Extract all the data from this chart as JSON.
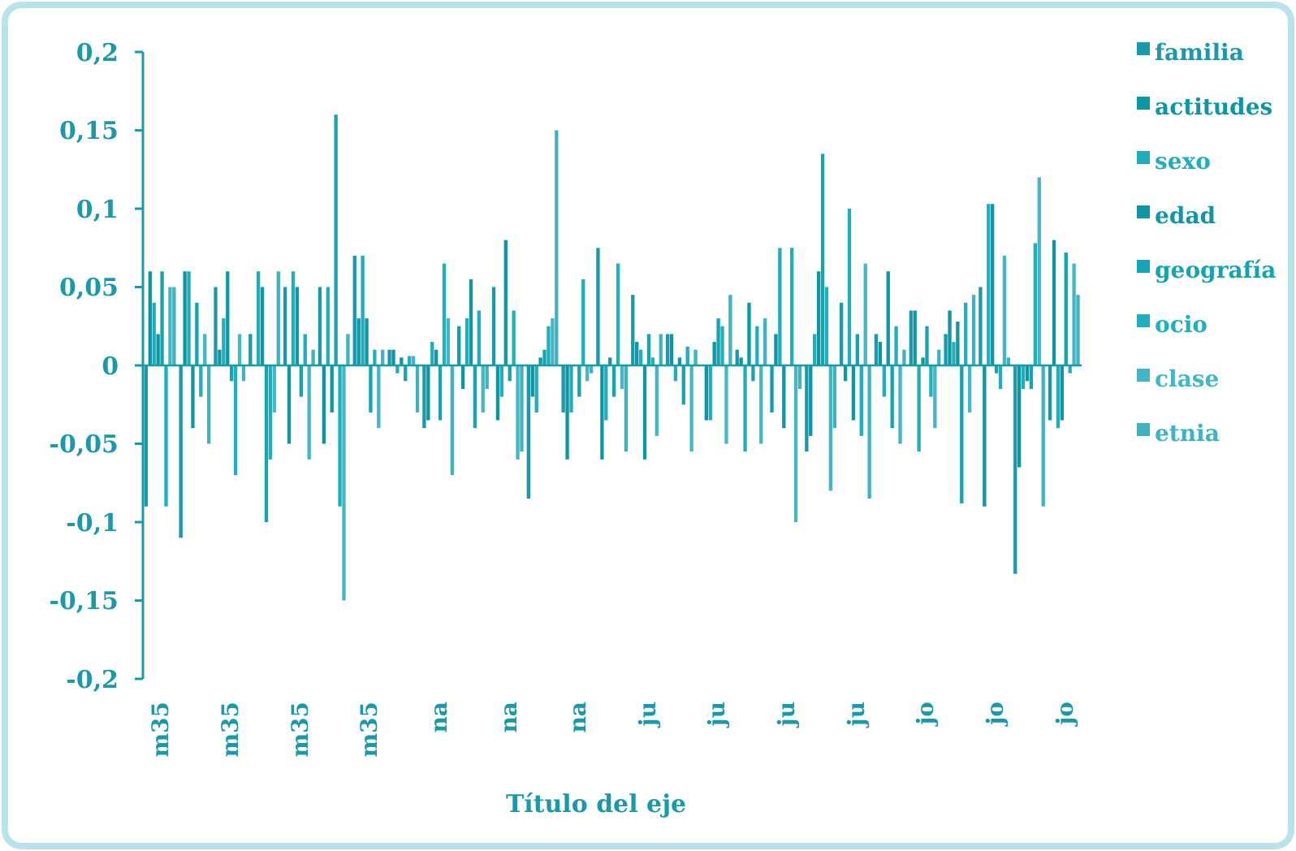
{
  "chart_data": {
    "type": "bar",
    "xlabel": "Título del eje",
    "categories": [
      "m35",
      null,
      "m35",
      null,
      "m35",
      null,
      "m35",
      null,
      "na",
      null,
      "na",
      null,
      "na",
      null,
      "ju",
      null,
      "ju",
      null,
      "ju",
      null,
      "ju",
      null,
      "jo",
      null,
      "jo",
      null,
      "jo"
    ],
    "series": [
      {
        "name": "familia",
        "color": "#1a9aa8",
        "values": [
          -0.09,
          -0.11,
          0.05,
          0.02,
          0.05,
          0.05,
          0.07,
          0.01,
          -0.04,
          0.025,
          0.05,
          -0.085,
          -0.03,
          0.075,
          0.045,
          0.02,
          0,
          0.01,
          -0.03,
          -0.055,
          0.04,
          0.02,
          0.035,
          0.02,
          0.05,
          -0.133,
          -0.035
        ]
      },
      {
        "name": "actitudes",
        "color": "#0e96a4",
        "values": [
          0.06,
          0.06,
          0.01,
          0,
          -0.05,
          -0.05,
          0.03,
          0.01,
          -0.035,
          -0.015,
          -0.035,
          -0.02,
          -0.06,
          -0.06,
          0.015,
          0.02,
          -0.035,
          0.005,
          0.02,
          -0.045,
          -0.01,
          0.015,
          0.035,
          0.035,
          -0.09,
          -0.065,
          0.08
        ]
      },
      {
        "name": "sexo",
        "color": "#22adbb",
        "values": [
          0.04,
          0.06,
          0.03,
          0.06,
          0.06,
          0.05,
          0.07,
          -0.005,
          0.015,
          0.03,
          -0.02,
          -0.03,
          -0.03,
          -0.035,
          0.01,
          -0.01,
          -0.035,
          -0.055,
          0.075,
          0.02,
          0.1,
          -0.02,
          -0.055,
          0.015,
          0.103,
          -0.015,
          -0.04
        ]
      },
      {
        "name": "edad",
        "color": "#0f97a5",
        "values": [
          0.02,
          -0.04,
          0.06,
          0.05,
          0.05,
          -0.03,
          0.03,
          0.005,
          0.01,
          0.055,
          0.08,
          0.005,
          0,
          0.005,
          -0.06,
          0.005,
          0.015,
          0.04,
          -0.04,
          0.06,
          -0.035,
          0.06,
          0.005,
          0.028,
          0.103,
          -0.01,
          -0.035
        ]
      },
      {
        "name": "geografía",
        "color": "#15a4b0",
        "values": [
          0.06,
          0.04,
          -0.01,
          -0.1,
          -0.02,
          0.16,
          -0.03,
          -0.01,
          -0.035,
          -0.04,
          -0.01,
          0.01,
          -0.02,
          -0.02,
          0.02,
          -0.025,
          0.03,
          -0.01,
          0,
          0.135,
          0.02,
          -0.04,
          0.025,
          -0.088,
          -0.005,
          -0.015,
          0.072
        ]
      },
      {
        "name": "ocio",
        "color": "#1eb0bd",
        "values": [
          -0.09,
          -0.02,
          -0.07,
          -0.06,
          0.02,
          -0.09,
          0.01,
          0.006,
          0.065,
          0.035,
          0.035,
          0.025,
          0.055,
          0.065,
          0.005,
          0.012,
          0.025,
          0.025,
          0.075,
          0.05,
          -0.045,
          0.025,
          -0.02,
          0.04,
          -0.015,
          0.078,
          -0.005
        ]
      },
      {
        "name": "clase",
        "color": "#44b7c4",
        "values": [
          0.05,
          0.02,
          0.02,
          -0.03,
          -0.06,
          -0.15,
          -0.04,
          0.006,
          0.03,
          -0.03,
          -0.06,
          0.03,
          -0.01,
          -0.015,
          -0.045,
          -0.055,
          -0.05,
          -0.05,
          -0.1,
          -0.08,
          0.065,
          -0.05,
          -0.04,
          -0.03,
          0.07,
          0.12,
          0.065
        ]
      },
      {
        "name": "etnia",
        "color": "#3fb4c0",
        "values": [
          0.05,
          -0.05,
          -0.01,
          0.06,
          0.01,
          0.02,
          0.01,
          -0.03,
          -0.07,
          -0.015,
          -0.055,
          0.15,
          -0.005,
          -0.055,
          0.02,
          0.01,
          0.045,
          0.03,
          -0.015,
          -0.04,
          -0.085,
          0.01,
          0.01,
          0.045,
          0.005,
          -0.09,
          0.045
        ]
      }
    ],
    "ylim": [
      -0.2,
      0.2
    ],
    "yticks": [
      {
        "value": -0.2,
        "label": "-0,2"
      },
      {
        "value": -0.15,
        "label": "-0,15"
      },
      {
        "value": -0.1,
        "label": "-0,1"
      },
      {
        "value": -0.05,
        "label": "-0,05"
      },
      {
        "value": 0,
        "label": "0"
      },
      {
        "value": 0.05,
        "label": "0,05"
      },
      {
        "value": 0.1,
        "label": "0,1"
      },
      {
        "value": 0.15,
        "label": "0,15"
      },
      {
        "value": 0.2,
        "label": "0,2"
      }
    ],
    "ref_lines": [
      {
        "axis": "y",
        "value": 0,
        "color": "#1a9aa8"
      }
    ],
    "grid": false,
    "legend": "right"
  }
}
